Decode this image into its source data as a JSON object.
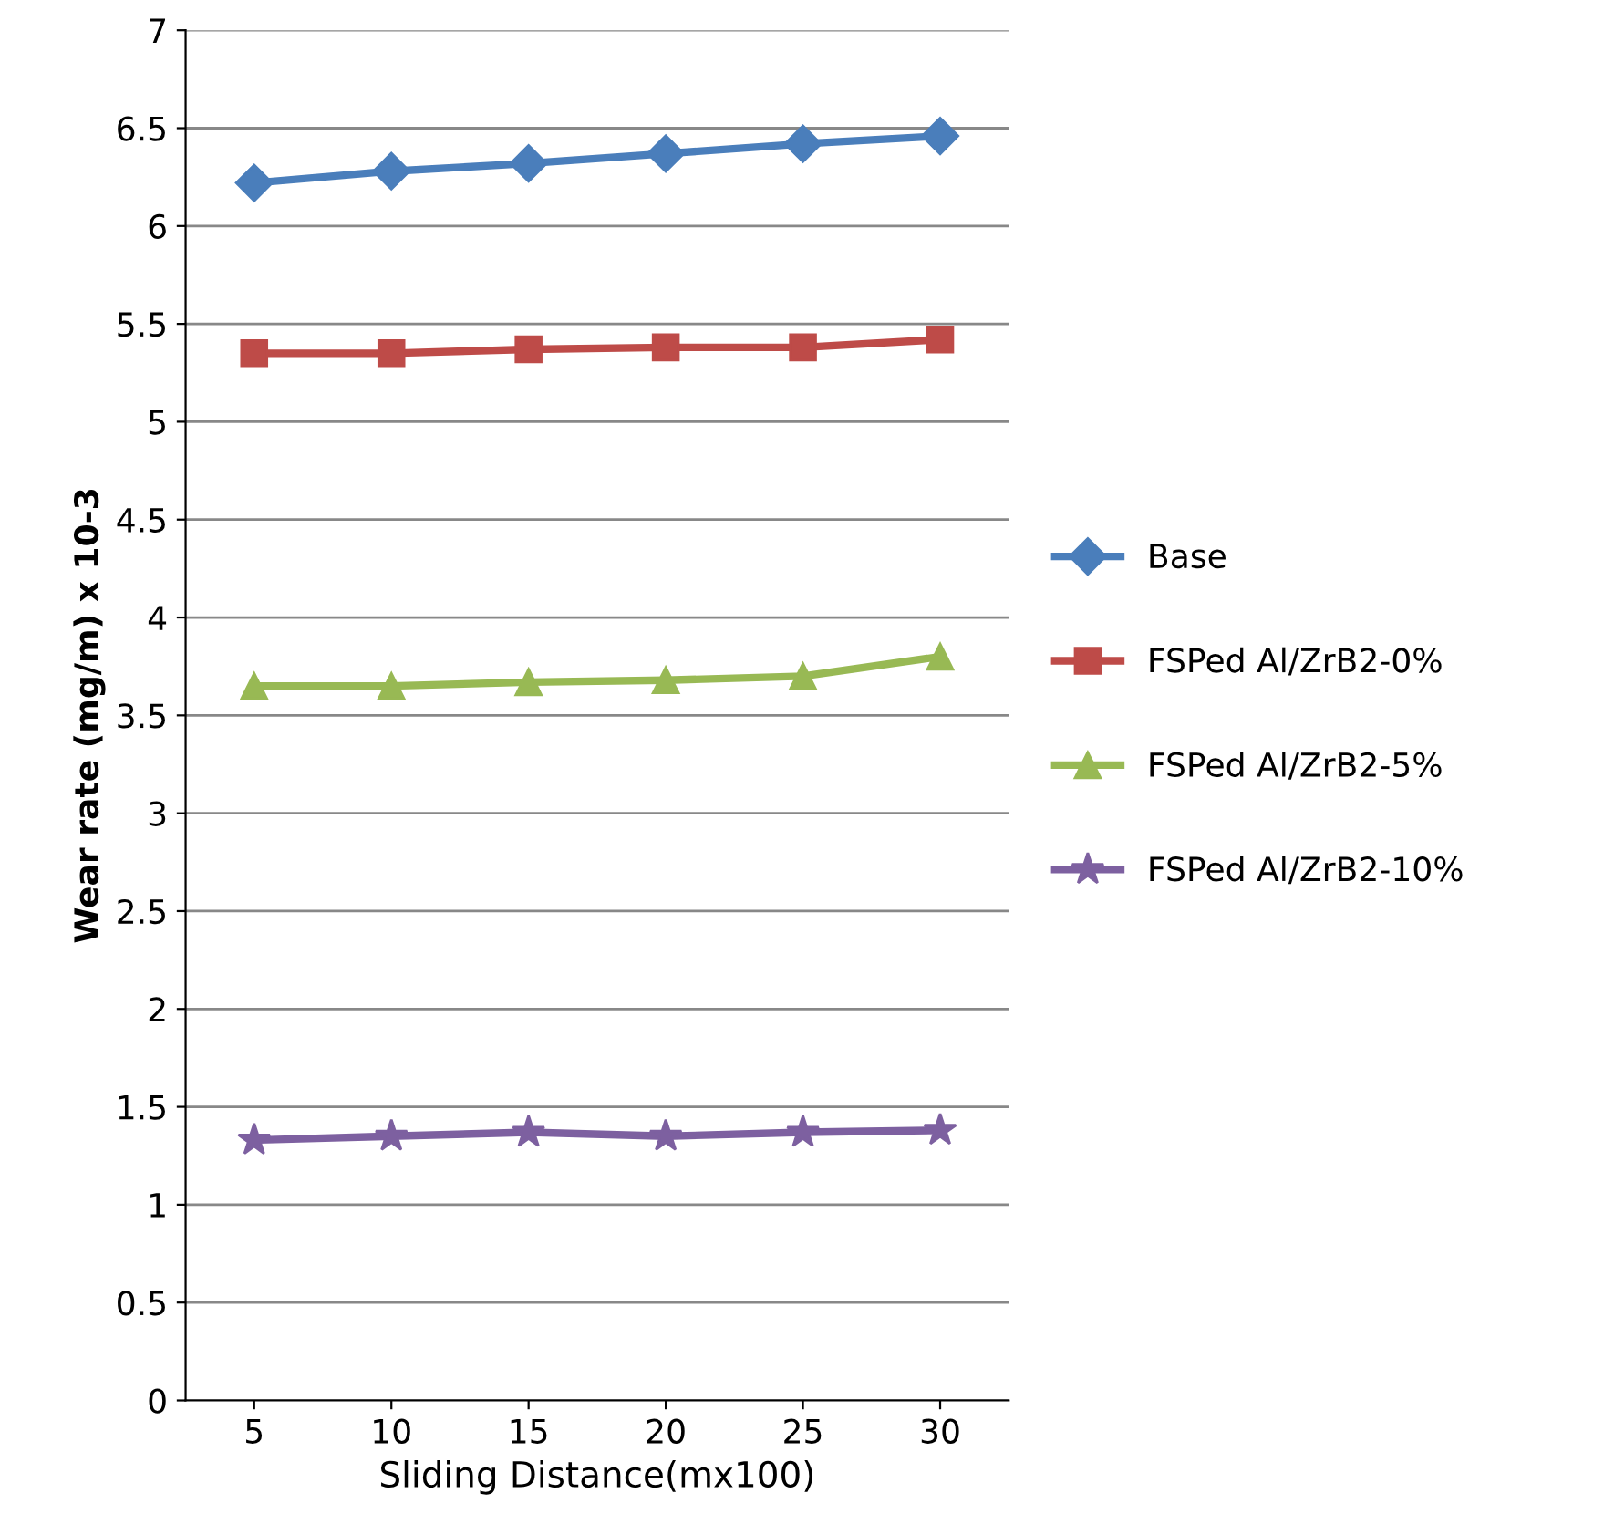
{
  "chart_data": {
    "type": "line",
    "xlabel": "Sliding Distance(mx100)",
    "ylabel": "Wear rate (mg/m) x 10-3",
    "categories": [
      "5",
      "10",
      "15",
      "20",
      "25",
      "30"
    ],
    "series": [
      {
        "name": "Base",
        "color": "#4a7ebb",
        "marker": "diamond",
        "values": [
          6.22,
          6.28,
          6.32,
          6.37,
          6.42,
          6.46
        ]
      },
      {
        "name": "FSPed Al/ZrB2-0%",
        "color": "#be4b48",
        "marker": "square",
        "values": [
          5.35,
          5.35,
          5.37,
          5.38,
          5.38,
          5.42
        ]
      },
      {
        "name": "FSPed Al/ZrB2-5%",
        "color": "#98b954",
        "marker": "triangle",
        "values": [
          3.65,
          3.65,
          3.67,
          3.68,
          3.7,
          3.8
        ]
      },
      {
        "name": "FSPed Al/ZrB2-10%",
        "color": "#7d60a0",
        "marker": "star",
        "values": [
          1.33,
          1.35,
          1.37,
          1.35,
          1.37,
          1.38
        ]
      }
    ],
    "ylim": [
      0,
      7
    ],
    "yticks": [
      0,
      0.5,
      1,
      1.5,
      2,
      2.5,
      3,
      3.5,
      4,
      4.5,
      5,
      5.5,
      6,
      6.5,
      7
    ],
    "grid": "y",
    "legend": "right",
    "line_style": "solid"
  }
}
